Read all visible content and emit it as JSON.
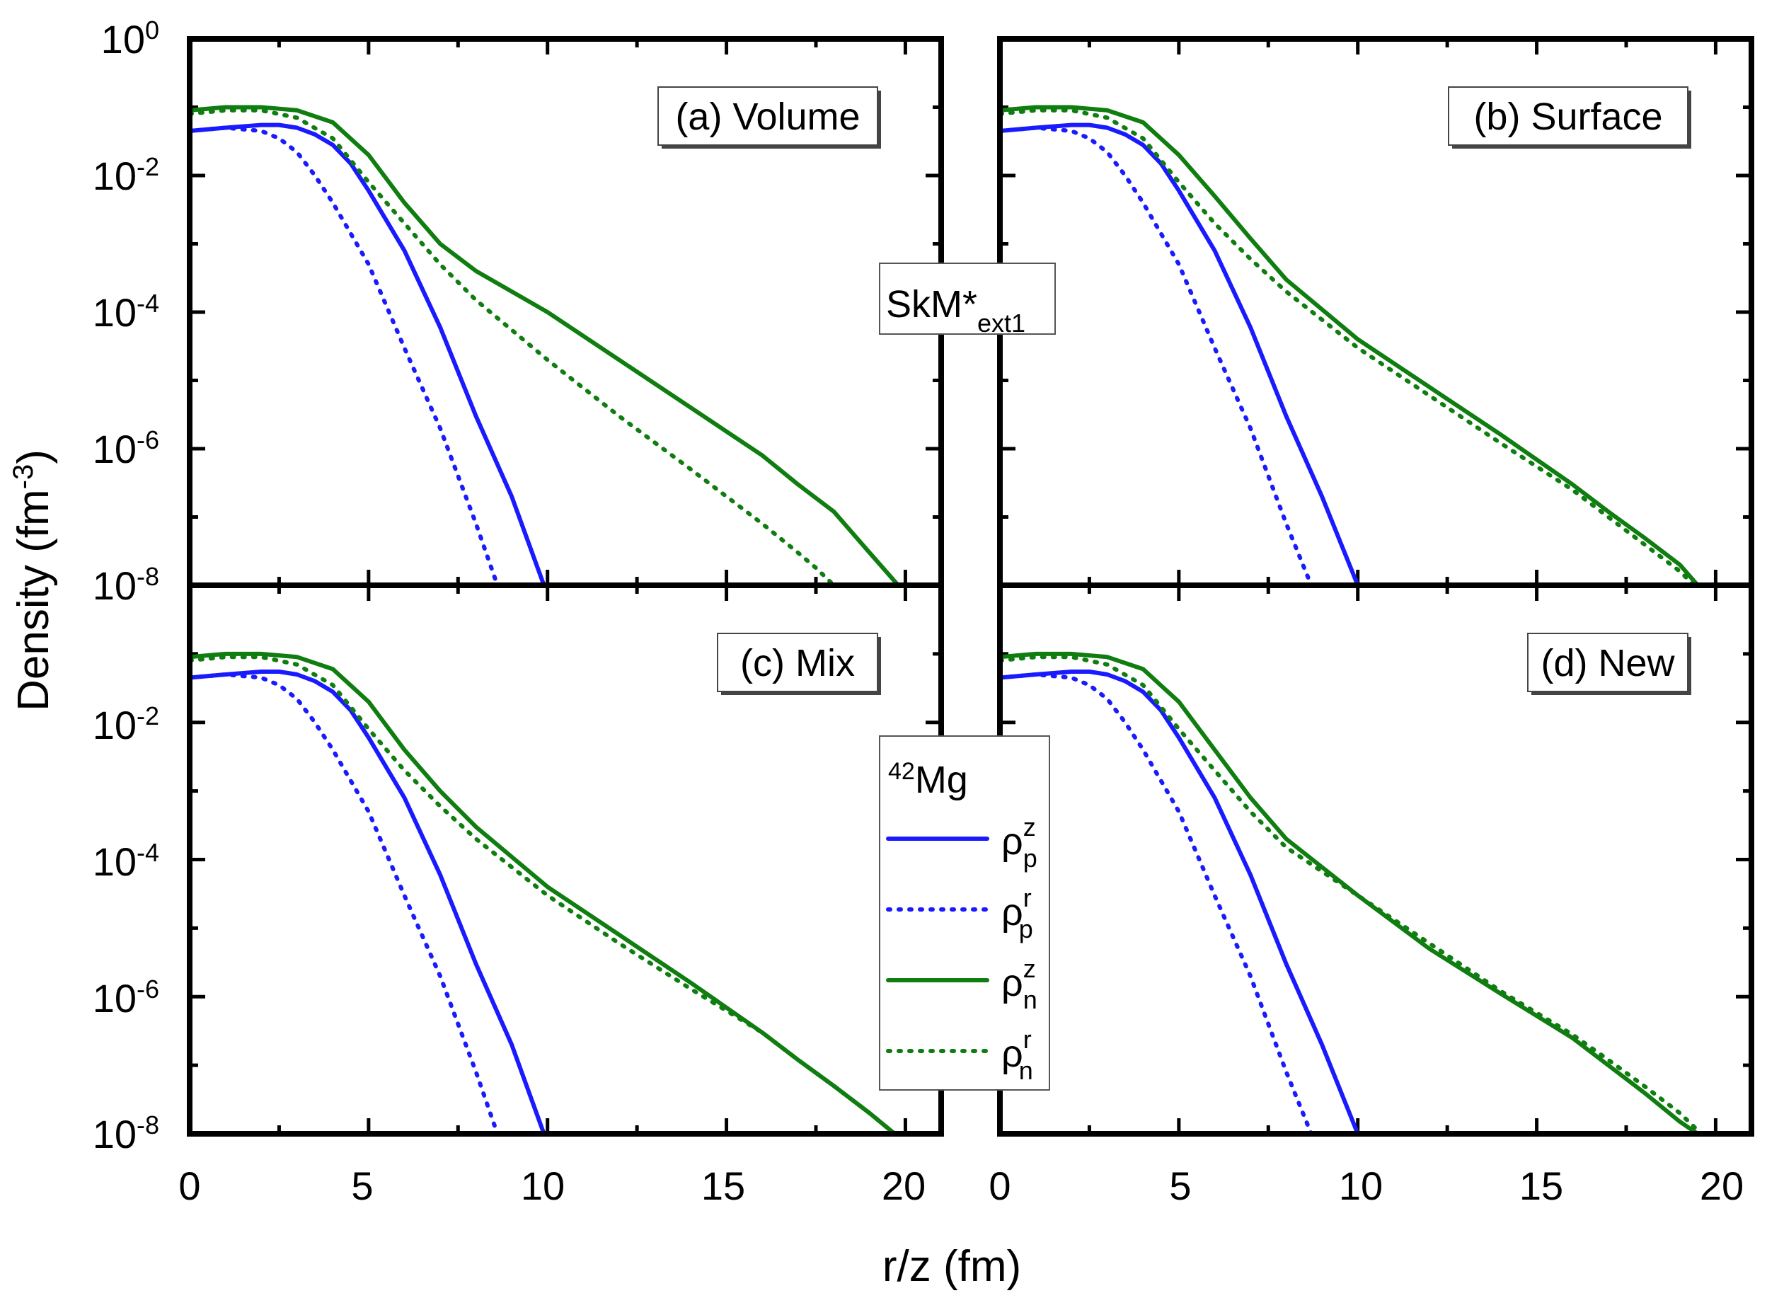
{
  "figure": {
    "y_axis_title": "Density (fm",
    "y_axis_title_sup": "-3",
    "y_axis_title_close": ")",
    "x_axis_title": "r/z (fm)",
    "center_label_main": "SkM*",
    "center_label_sub": "ext1"
  },
  "y_tick_labels": [
    {
      "base": "10",
      "exp": "0",
      "value": 1
    },
    {
      "base": "10",
      "exp": "-2",
      "value": 0.01
    },
    {
      "base": "10",
      "exp": "-4",
      "value": 0.0001
    },
    {
      "base": "10",
      "exp": "-6",
      "value": 1e-06
    },
    {
      "base": "10",
      "exp": "-8",
      "value": 1e-08
    }
  ],
  "x_tick_labels": [
    "0",
    "5",
    "10",
    "15",
    "20"
  ],
  "legend": {
    "title_sup": "42",
    "title_main": "Mg",
    "entries": [
      {
        "base": "ρ",
        "sup": "z",
        "sub": "p",
        "color": "#1a1aff",
        "dash": "solid"
      },
      {
        "base": "ρ",
        "sup": "r",
        "sub": "p",
        "color": "#1a1aff",
        "dash": "dotted"
      },
      {
        "base": "ρ",
        "sup": "z",
        "sub": "n",
        "color": "#0f7d0f",
        "dash": "solid"
      },
      {
        "base": "ρ",
        "sup": "r",
        "sub": "n",
        "color": "#0f7d0f",
        "dash": "dotted"
      }
    ]
  },
  "colors": {
    "proton": "#1a1aff",
    "neutron": "#0f7d0f",
    "axis": "#000000"
  },
  "chart_data": [
    {
      "type": "line",
      "title": "(a) Volume",
      "xlabel": "r/z (fm)",
      "ylabel": "Density (fm-3)",
      "xlim": [
        0,
        21
      ],
      "ylim": [
        1e-08,
        1
      ],
      "yscale": "log",
      "series": [
        {
          "name": "ρ_p^z",
          "x": [
            0,
            1,
            2,
            2.5,
            3,
            3.5,
            4,
            4.5,
            5,
            6,
            7,
            8,
            9,
            9.9
          ],
          "y": [
            0.045,
            0.05,
            0.055,
            0.055,
            0.05,
            0.04,
            0.028,
            0.015,
            0.006,
            0.0008,
            6e-05,
            3e-06,
            2e-07,
            1e-08
          ]
        },
        {
          "name": "ρ_p^r",
          "x": [
            0,
            1,
            2,
            2.5,
            3,
            3.5,
            4,
            5,
            6,
            7,
            8,
            8.6
          ],
          "y": [
            0.045,
            0.05,
            0.045,
            0.035,
            0.022,
            0.01,
            0.004,
            0.0005,
            3e-05,
            2e-06,
            8e-08,
            1e-08
          ]
        },
        {
          "name": "ρ_n^z",
          "x": [
            0,
            1,
            2,
            3,
            4,
            5,
            6,
            7,
            8,
            10,
            12,
            14,
            16,
            17,
            18,
            19,
            19.8
          ],
          "y": [
            0.09,
            0.1,
            0.1,
            0.09,
            0.06,
            0.02,
            0.004,
            0.001,
            0.0004,
            0.0001,
            2e-05,
            4e-06,
            8e-07,
            3e-07,
            1.2e-07,
            3e-08,
            1e-08
          ]
        },
        {
          "name": "ρ_n^r",
          "x": [
            0,
            1,
            2,
            3,
            4,
            5,
            6,
            7,
            8,
            10,
            12,
            14,
            15,
            16,
            17,
            17.5,
            18
          ],
          "y": [
            0.08,
            0.09,
            0.09,
            0.07,
            0.035,
            0.008,
            0.002,
            0.0005,
            0.00015,
            2e-05,
            3e-06,
            5e-07,
            2e-07,
            8e-08,
            3e-08,
            1.8e-08,
            1e-08
          ]
        }
      ]
    },
    {
      "type": "line",
      "title": "(b) Surface",
      "xlabel": "r/z (fm)",
      "ylabel": "Density (fm-3)",
      "xlim": [
        0,
        21
      ],
      "ylim": [
        1e-08,
        1
      ],
      "yscale": "log",
      "series": [
        {
          "name": "ρ_p^z",
          "x": [
            0,
            1,
            2,
            2.5,
            3,
            3.5,
            4,
            4.5,
            5,
            6,
            7,
            8,
            9,
            10
          ],
          "y": [
            0.045,
            0.05,
            0.055,
            0.055,
            0.05,
            0.04,
            0.028,
            0.015,
            0.006,
            0.0008,
            6e-05,
            3e-06,
            2e-07,
            1e-08
          ]
        },
        {
          "name": "ρ_p^r",
          "x": [
            0,
            1,
            2,
            2.5,
            3,
            3.5,
            4,
            5,
            6,
            7,
            8,
            8.7
          ],
          "y": [
            0.045,
            0.05,
            0.045,
            0.035,
            0.022,
            0.01,
            0.004,
            0.0005,
            3e-05,
            2e-06,
            8e-08,
            1e-08
          ]
        },
        {
          "name": "ρ_n^z",
          "x": [
            0,
            1,
            2,
            3,
            4,
            5,
            6,
            7,
            8,
            10,
            12,
            14,
            16,
            17,
            18,
            19,
            19.5
          ],
          "y": [
            0.09,
            0.1,
            0.1,
            0.09,
            0.06,
            0.02,
            0.005,
            0.0012,
            0.0003,
            4e-05,
            8e-06,
            1.6e-06,
            3e-07,
            1.2e-07,
            5e-08,
            2e-08,
            1e-08
          ]
        },
        {
          "name": "ρ_n^r",
          "x": [
            0,
            1,
            2,
            3,
            4,
            5,
            6,
            7,
            8,
            10,
            12,
            14,
            16,
            17,
            18,
            19,
            19.4
          ],
          "y": [
            0.08,
            0.09,
            0.09,
            0.07,
            0.035,
            0.008,
            0.002,
            0.0006,
            0.0002,
            3e-05,
            6e-06,
            1.2e-06,
            2.5e-07,
            1e-07,
            4e-08,
            1.6e-08,
            1e-08
          ]
        }
      ]
    },
    {
      "type": "line",
      "title": "(c) Mix",
      "xlabel": "r/z (fm)",
      "ylabel": "Density (fm-3)",
      "xlim": [
        0,
        21
      ],
      "ylim": [
        1e-08,
        1
      ],
      "yscale": "log",
      "series": [
        {
          "name": "ρ_p^z",
          "x": [
            0,
            1,
            2,
            2.5,
            3,
            3.5,
            4,
            4.5,
            5,
            6,
            7,
            8,
            9,
            9.9
          ],
          "y": [
            0.045,
            0.05,
            0.055,
            0.055,
            0.05,
            0.04,
            0.028,
            0.015,
            0.006,
            0.0008,
            6e-05,
            3e-06,
            2e-07,
            1e-08
          ]
        },
        {
          "name": "ρ_p^r",
          "x": [
            0,
            1,
            2,
            2.5,
            3,
            3.5,
            4,
            5,
            6,
            7,
            8,
            8.6
          ],
          "y": [
            0.045,
            0.05,
            0.045,
            0.035,
            0.022,
            0.01,
            0.004,
            0.0005,
            3e-05,
            2e-06,
            8e-08,
            1e-08
          ]
        },
        {
          "name": "ρ_n^z",
          "x": [
            0,
            1,
            2,
            3,
            4,
            5,
            6,
            7,
            8,
            10,
            12,
            14,
            16,
            17,
            18,
            19,
            19.7
          ],
          "y": [
            0.09,
            0.1,
            0.1,
            0.09,
            0.06,
            0.02,
            0.004,
            0.001,
            0.0003,
            4e-05,
            8e-06,
            1.6e-06,
            3e-07,
            1.2e-07,
            5e-08,
            2e-08,
            1e-08
          ]
        },
        {
          "name": "ρ_n^r",
          "x": [
            0,
            1,
            2,
            3,
            4,
            5,
            6,
            7,
            8,
            10,
            12,
            14,
            16,
            17,
            18,
            19,
            19.7
          ],
          "y": [
            0.08,
            0.09,
            0.09,
            0.07,
            0.035,
            0.008,
            0.002,
            0.0006,
            0.0002,
            3e-05,
            6e-06,
            1.3e-06,
            3e-07,
            1.2e-07,
            5e-08,
            2e-08,
            1e-08
          ]
        }
      ]
    },
    {
      "type": "line",
      "title": "(d) New",
      "xlabel": "r/z (fm)",
      "ylabel": "Density (fm-3)",
      "xlim": [
        0,
        21
      ],
      "ylim": [
        1e-08,
        1
      ],
      "yscale": "log",
      "series": [
        {
          "name": "ρ_p^z",
          "x": [
            0,
            1,
            2,
            2.5,
            3,
            3.5,
            4,
            4.5,
            5,
            6,
            7,
            8,
            9,
            10
          ],
          "y": [
            0.045,
            0.05,
            0.055,
            0.055,
            0.05,
            0.04,
            0.028,
            0.015,
            0.006,
            0.0008,
            6e-05,
            3e-06,
            2e-07,
            1e-08
          ]
        },
        {
          "name": "ρ_p^r",
          "x": [
            0,
            1,
            2,
            2.5,
            3,
            3.5,
            4,
            5,
            6,
            7,
            8,
            8.7
          ],
          "y": [
            0.045,
            0.05,
            0.045,
            0.035,
            0.022,
            0.01,
            0.004,
            0.0005,
            3e-05,
            2e-06,
            8e-08,
            1e-08
          ]
        },
        {
          "name": "ρ_n^z",
          "x": [
            0,
            1,
            2,
            3,
            4,
            5,
            6,
            7,
            8,
            10,
            12,
            14,
            16,
            17,
            18,
            19,
            19.5
          ],
          "y": [
            0.09,
            0.1,
            0.1,
            0.09,
            0.06,
            0.02,
            0.004,
            0.0008,
            0.0002,
            3e-05,
            5e-06,
            1.1e-06,
            2.5e-07,
            1e-07,
            4e-08,
            1.5e-08,
            1e-08
          ]
        },
        {
          "name": "ρ_n^r",
          "x": [
            0,
            1,
            2,
            3,
            4,
            5,
            6,
            7,
            8,
            10,
            12,
            14,
            16,
            17,
            18,
            19,
            19.6
          ],
          "y": [
            0.08,
            0.09,
            0.09,
            0.07,
            0.035,
            0.008,
            0.002,
            0.0005,
            0.00015,
            3e-05,
            6e-06,
            1.2e-06,
            2.8e-07,
            1.2e-07,
            5e-08,
            2e-08,
            1e-08
          ]
        }
      ]
    }
  ]
}
